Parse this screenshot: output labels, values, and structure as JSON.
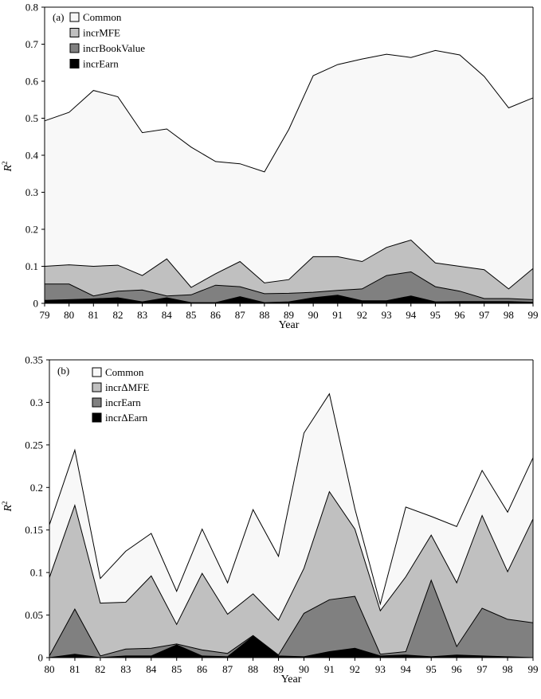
{
  "chart_data": [
    {
      "type": "area",
      "stacked": true,
      "panel_label": "(a)",
      "xlabel": "Year",
      "ylabel": "R2",
      "ylim": [
        0,
        0.8
      ],
      "yticks": [
        "0",
        "0.1",
        "0.2",
        "0.3",
        "0.4",
        "0.5",
        "0.6",
        "0.7",
        "0.8"
      ],
      "x": [
        "79",
        "80",
        "81",
        "82",
        "83",
        "84",
        "85",
        "86",
        "87",
        "88",
        "89",
        "90",
        "91",
        "92",
        "93",
        "94",
        "95",
        "96",
        "97",
        "98",
        "99"
      ],
      "legend_position": "top-left",
      "series": [
        {
          "name": "Common",
          "color": "#f8f8f8",
          "totals": [
            0.493,
            0.516,
            0.575,
            0.558,
            0.461,
            0.471,
            0.422,
            0.383,
            0.377,
            0.355,
            0.47,
            0.615,
            0.645,
            0.66,
            0.673,
            0.664,
            0.683,
            0.671,
            0.613,
            0.528,
            0.555
          ]
        },
        {
          "name": "incrMFE",
          "color": "#c0c0c0",
          "totals": [
            0.1,
            0.104,
            0.1,
            0.103,
            0.075,
            0.12,
            0.043,
            0.08,
            0.113,
            0.055,
            0.064,
            0.126,
            0.126,
            0.113,
            0.151,
            0.171,
            0.109,
            0.1,
            0.091,
            0.039,
            0.094
          ]
        },
        {
          "name": "incrBookValue",
          "color": "#808080",
          "totals": [
            0.052,
            0.052,
            0.02,
            0.033,
            0.036,
            0.02,
            0.023,
            0.049,
            0.045,
            0.026,
            0.027,
            0.03,
            0.035,
            0.039,
            0.075,
            0.085,
            0.045,
            0.033,
            0.013,
            0.013,
            0.01
          ]
        },
        {
          "name": "incrEarn",
          "color": "#000000",
          "totals": [
            0.008,
            0.01,
            0.012,
            0.015,
            0.004,
            0.015,
            0.002,
            0.002,
            0.018,
            0.002,
            0.004,
            0.015,
            0.022,
            0.007,
            0.007,
            0.02,
            0.004,
            0.005,
            0.005,
            0.005,
            0.003
          ]
        }
      ]
    },
    {
      "type": "area",
      "stacked": true,
      "panel_label": "(b)",
      "xlabel": "Year",
      "ylabel": "R2",
      "ylim": [
        0,
        0.35
      ],
      "yticks": [
        "0",
        "0.05",
        "0.1",
        "0.15",
        "0.2",
        "0.25",
        "0.3",
        "0.35"
      ],
      "x": [
        "80",
        "81",
        "82",
        "83",
        "84",
        "85",
        "86",
        "87",
        "88",
        "89",
        "90",
        "91",
        "92",
        "93",
        "94",
        "95",
        "96",
        "97",
        "98",
        "99"
      ],
      "legend_position": "top-left",
      "series": [
        {
          "name": "Common",
          "color": "#f8f8f8",
          "totals": [
            0.156,
            0.244,
            0.093,
            0.125,
            0.146,
            0.078,
            0.151,
            0.088,
            0.174,
            0.119,
            0.264,
            0.31,
            0.175,
            0.063,
            0.177,
            0.166,
            0.154,
            0.22,
            0.171,
            0.235
          ]
        },
        {
          "name": "incrΔMFE",
          "color": "#c0c0c0",
          "totals": [
            0.094,
            0.179,
            0.064,
            0.065,
            0.096,
            0.039,
            0.099,
            0.051,
            0.075,
            0.044,
            0.105,
            0.195,
            0.151,
            0.055,
            0.095,
            0.144,
            0.088,
            0.167,
            0.101,
            0.163
          ]
        },
        {
          "name": "incrEarn",
          "color": "#808080",
          "totals": [
            0.002,
            0.057,
            0.002,
            0.01,
            0.011,
            0.016,
            0.009,
            0.005,
            0.026,
            0.003,
            0.052,
            0.068,
            0.072,
            0.004,
            0.007,
            0.091,
            0.013,
            0.058,
            0.045,
            0.041
          ]
        },
        {
          "name": "incrΔEarn",
          "color": "#000000",
          "totals": [
            0.0,
            0.004,
            0.0,
            0.002,
            0.002,
            0.015,
            0.002,
            0.001,
            0.025,
            0.002,
            0.001,
            0.007,
            0.011,
            0.002,
            0.003,
            0.001,
            0.003,
            0.002,
            0.001,
            0.0
          ]
        }
      ]
    }
  ]
}
